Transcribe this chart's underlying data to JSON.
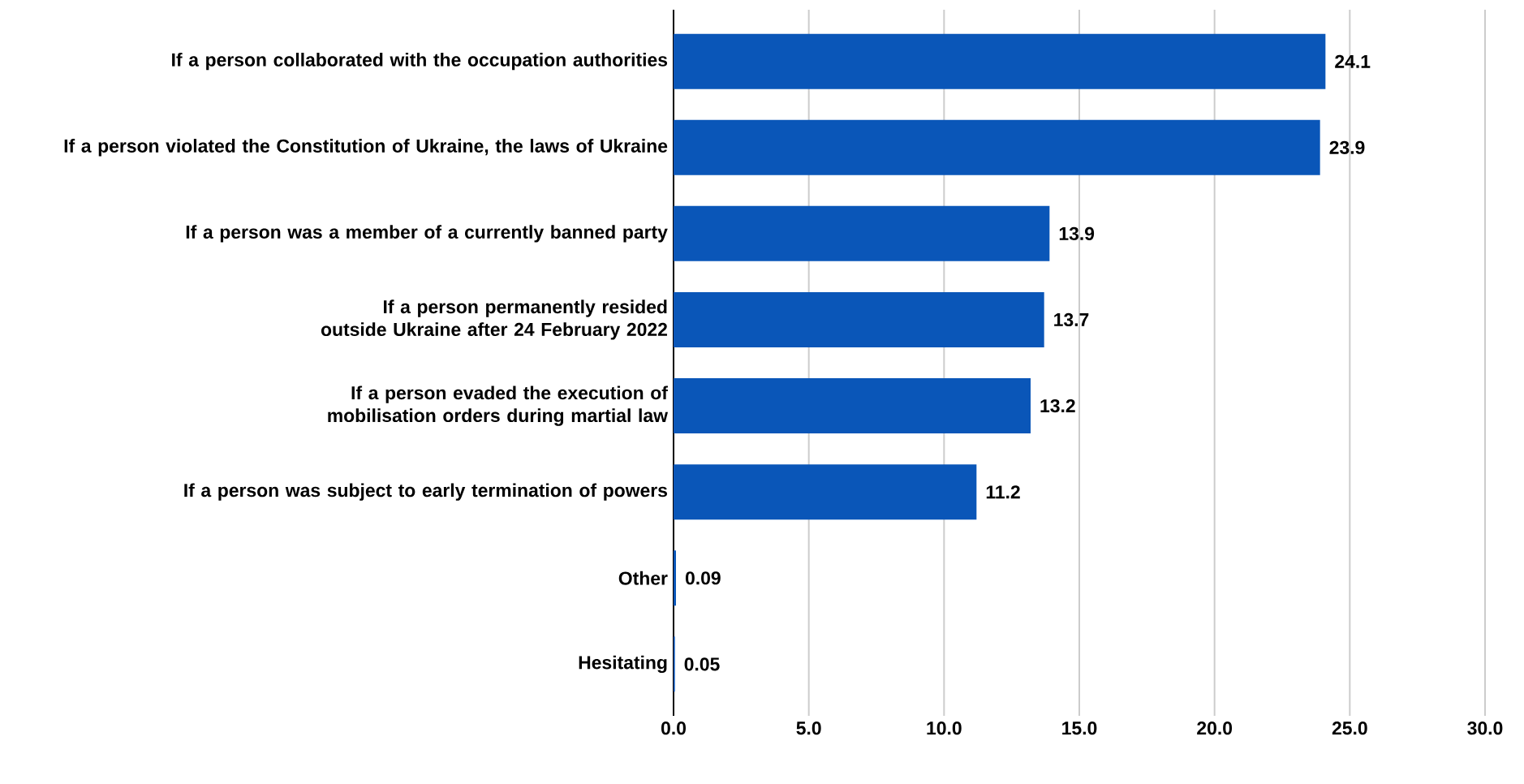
{
  "chart_data": {
    "type": "bar",
    "orientation": "horizontal",
    "categories": [
      "If a person collaborated with the occupation authorities",
      "If a person violated the Constitution of Ukraine, the laws of Ukraine",
      "If a person was a member of a currently banned party",
      "If a person permanently resided outside Ukraine after 24 February 2022",
      "If a person evaded the execution of mobilisation orders during martial law",
      "If a person was subject to early termination of powers",
      "Other",
      "Hesitating"
    ],
    "values": [
      24.1,
      23.9,
      13.9,
      13.7,
      13.2,
      11.2,
      0.09,
      0.05
    ],
    "color": "#0a56b8",
    "xlim": [
      0,
      30
    ],
    "xticks": [
      {
        "value": 0,
        "label": "0.0"
      },
      {
        "value": 5,
        "label": "5.0"
      },
      {
        "value": 10,
        "label": "10.0"
      },
      {
        "value": 15,
        "label": "15.0"
      },
      {
        "value": 20,
        "label": "20.0"
      },
      {
        "value": 25,
        "label": "25.0"
      },
      {
        "value": 30,
        "label": "30.0"
      }
    ],
    "grid": "x",
    "data_labels": true
  }
}
